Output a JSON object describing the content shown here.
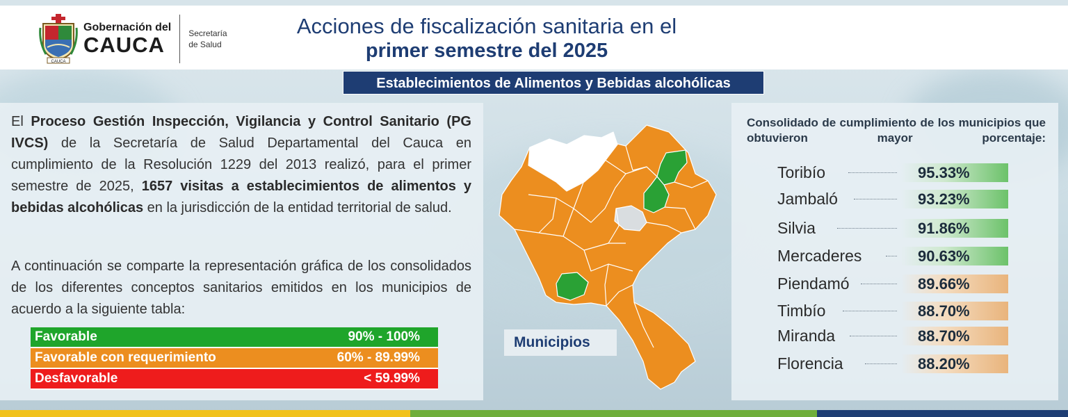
{
  "header": {
    "org_small": "Gobernación del",
    "org_big": "CAUCA",
    "dept_line1": "Secretaría",
    "dept_line2": "de Salud",
    "shield_text": "CAUCA",
    "title_line1": "Acciones de fiscalización sanitaria en el",
    "title_line2": "primer semestre del 2025",
    "subtitle": "Establecimientos de Alimentos y Bebidas alcohólicas"
  },
  "intro": {
    "p1_a": "El ",
    "p1_b": "Proceso Gestión Inspección, Vigilancia y Control Sanitario (PG IVCS)",
    "p1_c": " de la Secretaría de Salud Departamental del Cauca en cumplimiento de la Resolución 1229 del 2013 realizó, para el primer semestre de 2025, ",
    "p1_d": "1657 visitas a establecimientos de alimentos y bebidas alcohólicas",
    "p1_e": " en la jurisdicción de la entidad territorial de salud.",
    "p2": "A continuación se comparte la representación gráfica de los consolidados de los diferentes conceptos sanitarios emitidos en los municipios de acuerdo a la siguiente tabla:"
  },
  "legend": [
    {
      "label": "Favorable",
      "range": "90% - 100%",
      "color": "#1fa52b"
    },
    {
      "label": "Favorable con requerimiento",
      "range": "60% - 89.99%",
      "color": "#ec8e1f"
    },
    {
      "label": "Desfavorable",
      "range": "< 59.99%",
      "color": "#ee1c1c"
    }
  ],
  "map": {
    "label": "Municipios",
    "colors": {
      "favorable": "#2aa135",
      "requerimiento": "#ec8e1f",
      "sin_dato": "#ffffff",
      "capital": "#d9dde0"
    }
  },
  "ranking": {
    "title": "Consolidado de cumplimiento de los municipios que obtuvieron mayor porcentaje:",
    "items": [
      {
        "name": "Toribío",
        "value": "95.33%",
        "category": "favorable"
      },
      {
        "name": "Jambaló",
        "value": "93.23%",
        "category": "favorable"
      },
      {
        "name": "Silvia",
        "value": "91.86%",
        "category": "favorable"
      },
      {
        "name": "Mercaderes",
        "value": "90.63%",
        "category": "favorable"
      },
      {
        "name": "Piendamó",
        "value": "89.66%",
        "category": "requerimiento"
      },
      {
        "name": "Timbío",
        "value": "88.70%",
        "category": "requerimiento"
      },
      {
        "name": "Miranda",
        "value": "88.70%",
        "category": "requerimiento"
      },
      {
        "name": "Florencia",
        "value": "88.20%",
        "category": "requerimiento"
      }
    ]
  },
  "footer_colors": [
    "#f1c21b",
    "#6fae3a",
    "#1e3d73"
  ]
}
